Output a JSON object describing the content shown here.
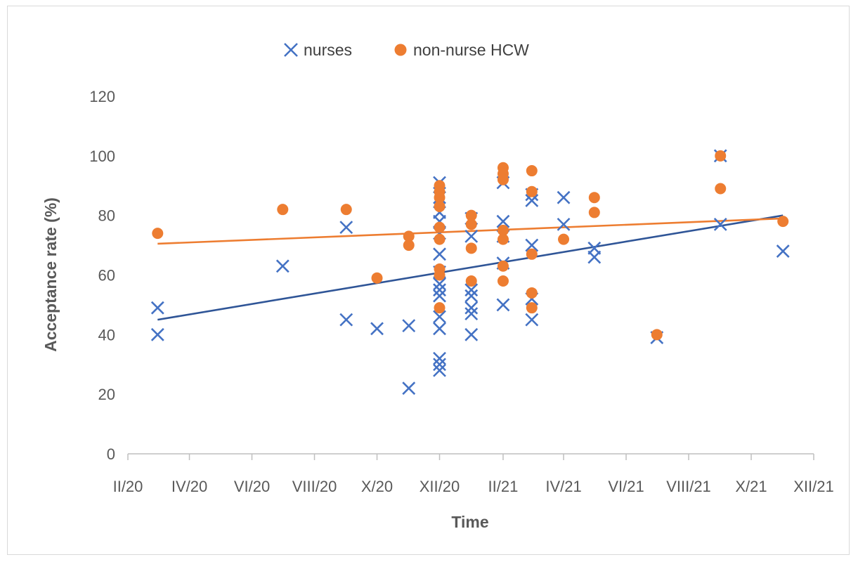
{
  "chart_data": {
    "type": "scatter",
    "xlabel": "Time",
    "ylabel": "Acceptance rate (%)",
    "ylim": [
      0,
      120
    ],
    "yticks": [
      0,
      20,
      40,
      60,
      80,
      100,
      120
    ],
    "xlim": [
      "2020-02-01",
      "2021-12-01"
    ],
    "xticks": [
      {
        "date": "2020-02-01",
        "label": "II/20"
      },
      {
        "date": "2020-04-01",
        "label": "IV/20"
      },
      {
        "date": "2020-06-01",
        "label": "VI/20"
      },
      {
        "date": "2020-08-01",
        "label": "VIII/20"
      },
      {
        "date": "2020-10-01",
        "label": "X/20"
      },
      {
        "date": "2020-12-01",
        "label": "XII/20"
      },
      {
        "date": "2021-02-01",
        "label": "II/21"
      },
      {
        "date": "2021-04-01",
        "label": "IV/21"
      },
      {
        "date": "2021-06-01",
        "label": "VI/21"
      },
      {
        "date": "2021-08-01",
        "label": "VIII/21"
      },
      {
        "date": "2021-10-01",
        "label": "X/21"
      },
      {
        "date": "2021-12-01",
        "label": "XII/21"
      }
    ],
    "grid": false,
    "legend_position": "top",
    "series": [
      {
        "name": "nurses",
        "marker": "x",
        "color": "#4472C4",
        "trendline_color": "#2F5597",
        "trendline": [
          {
            "x": "2020-03-01",
            "y": 45
          },
          {
            "x": "2021-11-01",
            "y": 80
          }
        ],
        "points": [
          {
            "x": "2020-03-01",
            "y": 49
          },
          {
            "x": "2020-03-01",
            "y": 40
          },
          {
            "x": "2020-07-01",
            "y": 63
          },
          {
            "x": "2020-09-01",
            "y": 76
          },
          {
            "x": "2020-09-01",
            "y": 45
          },
          {
            "x": "2020-10-01",
            "y": 42
          },
          {
            "x": "2020-11-01",
            "y": 43
          },
          {
            "x": "2020-11-01",
            "y": 22
          },
          {
            "x": "2020-12-01",
            "y": 91
          },
          {
            "x": "2020-12-01",
            "y": 86
          },
          {
            "x": "2020-12-01",
            "y": 81
          },
          {
            "x": "2020-12-01",
            "y": 78
          },
          {
            "x": "2020-12-01",
            "y": 74
          },
          {
            "x": "2020-12-01",
            "y": 67
          },
          {
            "x": "2020-12-01",
            "y": 61
          },
          {
            "x": "2020-12-01",
            "y": 57
          },
          {
            "x": "2020-12-01",
            "y": 55
          },
          {
            "x": "2020-12-01",
            "y": 53
          },
          {
            "x": "2020-12-01",
            "y": 46
          },
          {
            "x": "2020-12-01",
            "y": 42
          },
          {
            "x": "2020-12-01",
            "y": 32
          },
          {
            "x": "2020-12-01",
            "y": 30
          },
          {
            "x": "2020-12-01",
            "y": 28
          },
          {
            "x": "2021-01-01",
            "y": 79
          },
          {
            "x": "2021-01-01",
            "y": 73
          },
          {
            "x": "2021-01-01",
            "y": 55
          },
          {
            "x": "2021-01-01",
            "y": 53
          },
          {
            "x": "2021-01-01",
            "y": 49
          },
          {
            "x": "2021-01-01",
            "y": 47
          },
          {
            "x": "2021-01-01",
            "y": 40
          },
          {
            "x": "2021-02-01",
            "y": 91
          },
          {
            "x": "2021-02-01",
            "y": 78
          },
          {
            "x": "2021-02-01",
            "y": 73
          },
          {
            "x": "2021-02-01",
            "y": 64
          },
          {
            "x": "2021-02-01",
            "y": 50
          },
          {
            "x": "2021-03-01",
            "y": 87
          },
          {
            "x": "2021-03-01",
            "y": 85
          },
          {
            "x": "2021-03-01",
            "y": 70
          },
          {
            "x": "2021-03-01",
            "y": 52
          },
          {
            "x": "2021-03-01",
            "y": 45
          },
          {
            "x": "2021-04-01",
            "y": 86
          },
          {
            "x": "2021-04-01",
            "y": 77
          },
          {
            "x": "2021-05-01",
            "y": 69
          },
          {
            "x": "2021-05-01",
            "y": 66
          },
          {
            "x": "2021-07-01",
            "y": 39
          },
          {
            "x": "2021-09-01",
            "y": 100
          },
          {
            "x": "2021-09-01",
            "y": 77
          },
          {
            "x": "2021-11-01",
            "y": 68
          }
        ]
      },
      {
        "name": "non-nurse HCW",
        "marker": "circle",
        "color": "#ED7D31",
        "trendline_color": "#ED7D31",
        "trendline": [
          {
            "x": "2020-03-01",
            "y": 70.5
          },
          {
            "x": "2021-11-01",
            "y": 79
          }
        ],
        "points": [
          {
            "x": "2020-03-01",
            "y": 74
          },
          {
            "x": "2020-07-01",
            "y": 82
          },
          {
            "x": "2020-09-01",
            "y": 82
          },
          {
            "x": "2020-10-01",
            "y": 59
          },
          {
            "x": "2020-11-01",
            "y": 73
          },
          {
            "x": "2020-11-01",
            "y": 70
          },
          {
            "x": "2020-12-01",
            "y": 90
          },
          {
            "x": "2020-12-01",
            "y": 88
          },
          {
            "x": "2020-12-01",
            "y": 86
          },
          {
            "x": "2020-12-01",
            "y": 83
          },
          {
            "x": "2020-12-01",
            "y": 76
          },
          {
            "x": "2020-12-01",
            "y": 72
          },
          {
            "x": "2020-12-01",
            "y": 62
          },
          {
            "x": "2020-12-01",
            "y": 60
          },
          {
            "x": "2020-12-01",
            "y": 49
          },
          {
            "x": "2021-01-01",
            "y": 80
          },
          {
            "x": "2021-01-01",
            "y": 77
          },
          {
            "x": "2021-01-01",
            "y": 69
          },
          {
            "x": "2021-01-01",
            "y": 58
          },
          {
            "x": "2021-02-01",
            "y": 96
          },
          {
            "x": "2021-02-01",
            "y": 94
          },
          {
            "x": "2021-02-01",
            "y": 92
          },
          {
            "x": "2021-02-01",
            "y": 75
          },
          {
            "x": "2021-02-01",
            "y": 72
          },
          {
            "x": "2021-02-01",
            "y": 63
          },
          {
            "x": "2021-02-01",
            "y": 58
          },
          {
            "x": "2021-03-01",
            "y": 95
          },
          {
            "x": "2021-03-01",
            "y": 88
          },
          {
            "x": "2021-03-01",
            "y": 67
          },
          {
            "x": "2021-03-01",
            "y": 54
          },
          {
            "x": "2021-03-01",
            "y": 49
          },
          {
            "x": "2021-04-01",
            "y": 72
          },
          {
            "x": "2021-05-01",
            "y": 86
          },
          {
            "x": "2021-05-01",
            "y": 81
          },
          {
            "x": "2021-07-01",
            "y": 40
          },
          {
            "x": "2021-09-01",
            "y": 100
          },
          {
            "x": "2021-09-01",
            "y": 89
          },
          {
            "x": "2021-11-01",
            "y": 78
          }
        ]
      }
    ]
  }
}
